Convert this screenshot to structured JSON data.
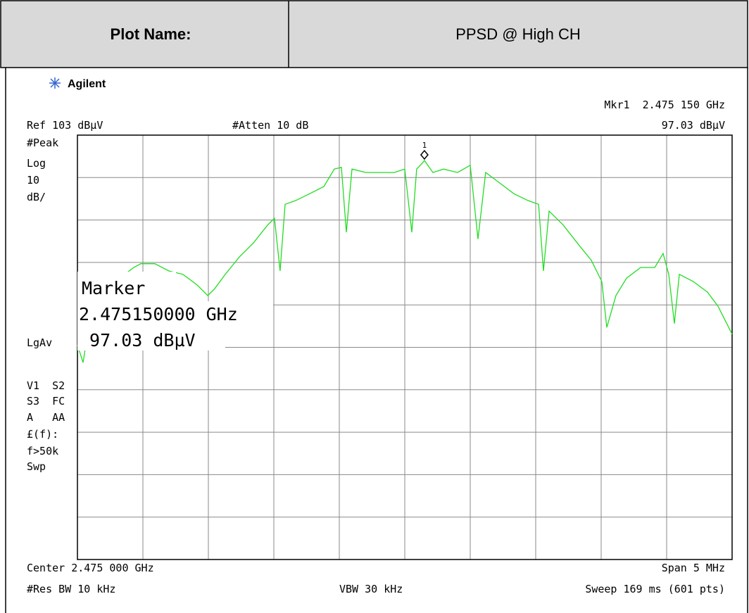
{
  "header": {
    "label": "Plot Name:",
    "value": "PPSD @ High CH"
  },
  "chart_data": {
    "type": "line",
    "brand": "Agilent",
    "marker_readout": "Mkr1  2.475 150 GHz",
    "marker_readout_level": "97.03 dBµV",
    "reference": "Ref 103 dBµV",
    "attenuation": "#Atten 10 dB",
    "side_labels": [
      "#Peak",
      "Log",
      "10",
      "dB/",
      "LgAv",
      "V1  S2",
      "S3  FC",
      "A   AA",
      "£(f):",
      "f>50k",
      "Swp"
    ],
    "footer": {
      "center": "Center 2.475 000 GHz",
      "span": "Span 5 MHz",
      "rbw": "#Res BW 10 kHz",
      "vbw": "VBW 30 kHz",
      "sweep": "Sweep 169 ms (601 pts)"
    },
    "marker_box": [
      "Marker",
      "2.475150000 GHz",
      " 97.03 dBµV"
    ],
    "marker": {
      "label": "1",
      "x": 2.47515,
      "y": 97.03
    },
    "xlim": [
      2.4725,
      2.4775
    ],
    "ylim": [
      3,
      103
    ],
    "xticks": [
      2.4725,
      2.473,
      2.4735,
      2.474,
      2.4745,
      2.475,
      2.4755,
      2.476,
      2.4765,
      2.477,
      2.4775
    ],
    "yticks": [
      3,
      13,
      23,
      33,
      43,
      53,
      63,
      73,
      83,
      93,
      103
    ],
    "grid": true,
    "series": [
      {
        "color": "#22dd22",
        "x": [
          2.4725,
          2.472543,
          2.472581,
          2.472634,
          2.472715,
          2.472823,
          2.47293,
          2.472984,
          2.473091,
          2.473199,
          2.473306,
          2.473414,
          2.473495,
          2.473548,
          2.473629,
          2.473737,
          2.473844,
          2.473952,
          2.474005,
          2.474048,
          2.474086,
          2.474167,
          2.474274,
          2.474382,
          2.474462,
          2.474516,
          2.474554,
          2.474597,
          2.474704,
          2.474812,
          2.474919,
          2.475,
          2.475054,
          2.475091,
          2.475134,
          2.47515,
          2.475215,
          2.475296,
          2.475403,
          2.4755,
          2.475559,
          2.475618,
          2.475726,
          2.475833,
          2.475941,
          2.476022,
          2.476059,
          2.476102,
          2.47621,
          2.476317,
          2.476425,
          2.476505,
          2.476543,
          2.476613,
          2.476694,
          2.476801,
          2.476909,
          2.476973,
          2.477016,
          2.477059,
          2.477097,
          2.477204,
          2.477312,
          2.477392,
          2.4775
        ],
        "values": [
          53.6,
          49.4,
          56.9,
          65.2,
          68.5,
          69.3,
          71.8,
          72.7,
          72.7,
          71,
          70.2,
          67.7,
          65.2,
          66.8,
          70.2,
          74.3,
          77.6,
          81.8,
          83.4,
          71,
          86.7,
          87.6,
          89.2,
          90.9,
          95,
          95.4,
          80.1,
          95,
          94.2,
          94.2,
          94.2,
          95,
          80.1,
          95,
          96.4,
          97.03,
          94.2,
          95,
          94.2,
          95.9,
          78.5,
          94.2,
          91.7,
          89.2,
          87.6,
          86.7,
          71,
          85.1,
          81.8,
          77.6,
          73.5,
          68.5,
          57.7,
          65.2,
          69.3,
          71.8,
          71.8,
          75.1,
          70.2,
          58.6,
          70.2,
          68.5,
          66,
          62.7,
          56.1
        ]
      }
    ]
  }
}
